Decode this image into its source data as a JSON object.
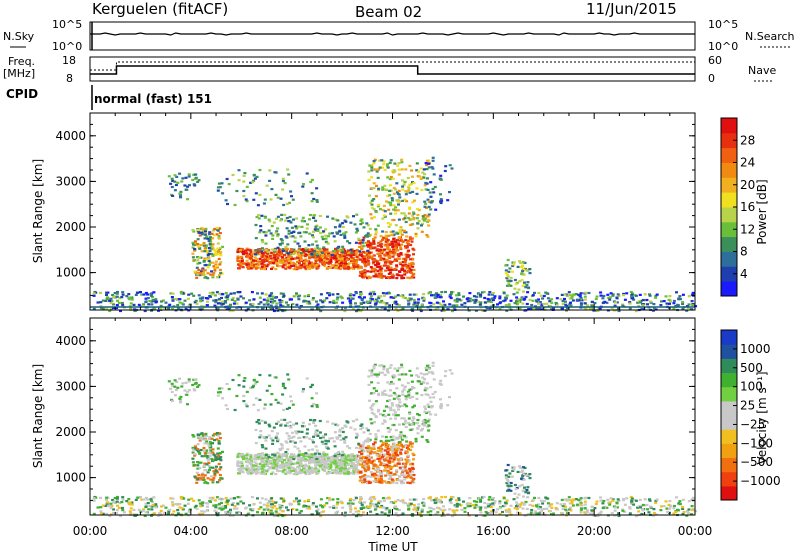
{
  "header": {
    "station": "Kerguelen (fitACF)",
    "beam": "Beam 02",
    "date": "11/Jun/2015"
  },
  "status_panels": {
    "nsky_label": "N.Sky",
    "nsky_ticks": [
      "10^5",
      "10^0"
    ],
    "nsearch_label": "N.Search",
    "nsearch_ticks": [
      "10^5",
      "10^0"
    ],
    "freq_label_1": "Freq.",
    "freq_label_2": "[MHz]",
    "freq_ticks": [
      "18",
      "8"
    ],
    "nave_label": "Nave",
    "nave_ticks": [
      "60",
      "0"
    ],
    "cpid_label": "CPID",
    "cpid_text": "normal (fast) 151"
  },
  "chart_data": [
    {
      "type": "heatmap",
      "name": "power",
      "ylabel": "Slant Range [km]",
      "yticks": [
        "4000",
        "3000",
        "2000",
        "1000"
      ],
      "ylim": [
        180,
        4500
      ],
      "xlim": [
        0,
        24
      ],
      "colorbar_label": "Power [dB]",
      "colorbar_ticks": [
        "28",
        "24",
        "20",
        "16",
        "12",
        "8",
        "4"
      ],
      "colorbar_colors": [
        "#1a1aff",
        "#1f3fb0",
        "#2e6e9a",
        "#3a8f5a",
        "#6abf3a",
        "#b8d24a",
        "#f0e020",
        "#f0b020",
        "#f08a10",
        "#f06010",
        "#e83010",
        "#e01010"
      ]
    },
    {
      "type": "heatmap",
      "name": "velocity",
      "ylabel": "Slant Range [km]",
      "yticks": [
        "4000",
        "3000",
        "2000",
        "1000"
      ],
      "ylim": [
        180,
        4500
      ],
      "xlim": [
        0,
        24
      ],
      "colorbar_label": "Velocity  [m s⁻¹]",
      "colorbar_ticks": [
        "1000",
        "500",
        "100",
        "25",
        "−25",
        "−100",
        "−500",
        "−1000"
      ],
      "colorbar_colors": [
        "#e01010",
        "#f04010",
        "#f07010",
        "#f0a010",
        "#f0c020",
        "#c8c8c8",
        "#c8c8c8",
        "#70d040",
        "#40b030",
        "#2e8c5a",
        "#2050a0",
        "#1a3ac8"
      ]
    }
  ],
  "xaxis": {
    "ticks": [
      "00:00",
      "04:00",
      "08:00",
      "12:00",
      "16:00",
      "20:00",
      "00:00"
    ],
    "label": "Time UT"
  }
}
